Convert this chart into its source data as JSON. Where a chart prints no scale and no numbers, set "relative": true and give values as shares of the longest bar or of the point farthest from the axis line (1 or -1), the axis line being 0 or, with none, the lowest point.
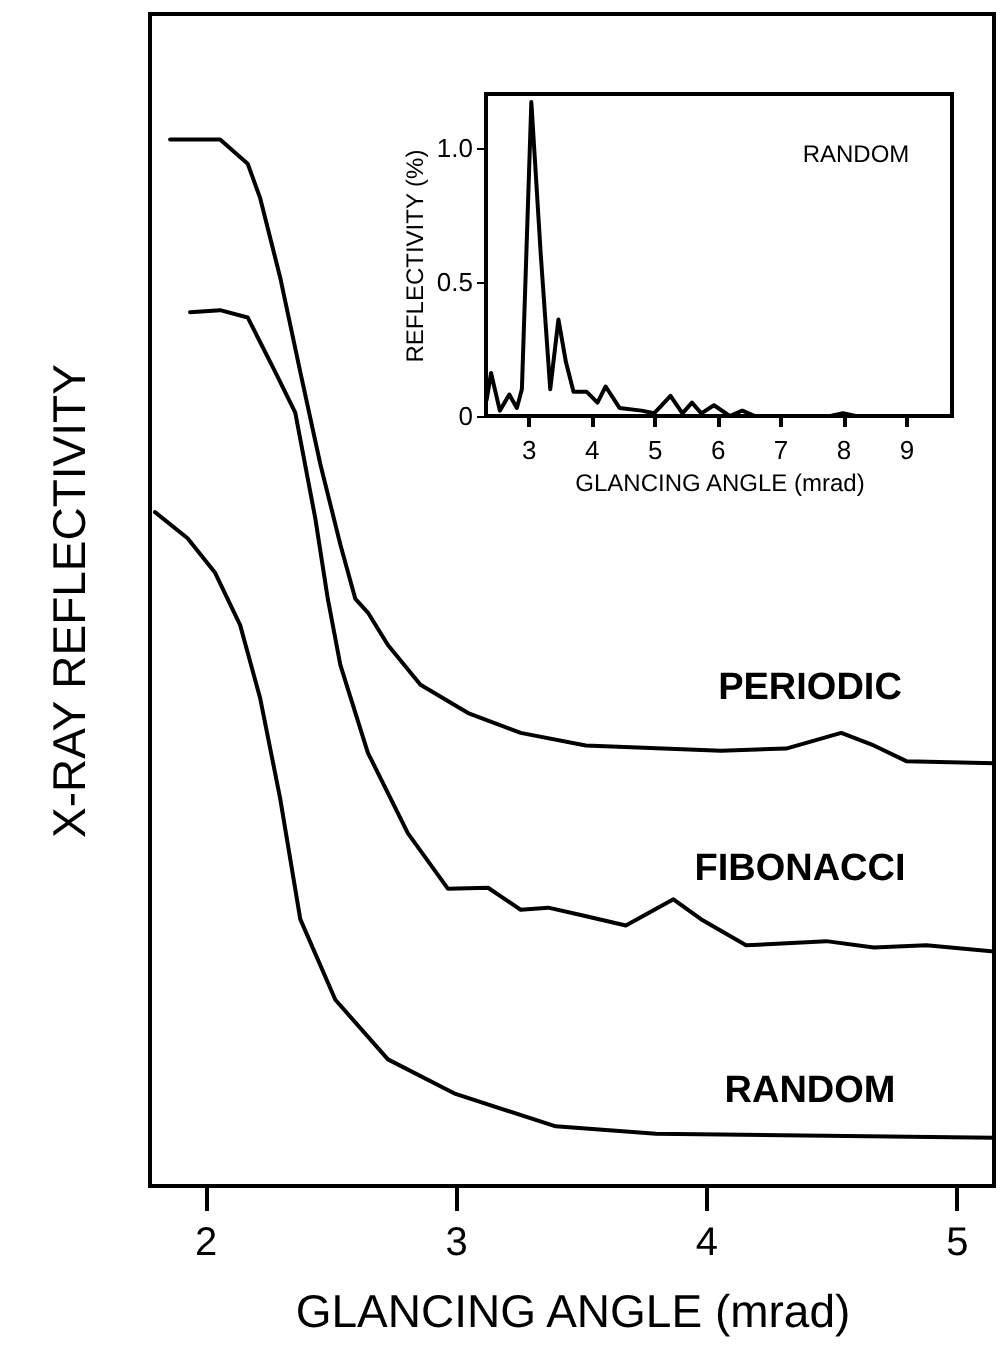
{
  "chart_data": [
    {
      "type": "line",
      "xlabel": "GLANCING ANGLE (mrad)",
      "ylabel": "X-RAY REFLECTIVITY",
      "relative": true,
      "xlim": [
        1.78,
        5.15
      ],
      "xticks": [
        2,
        3,
        4,
        5
      ],
      "grid": false,
      "marker": "none",
      "line_style": "solid",
      "series": [
        {
          "name": "PERIODIC",
          "color": "#000000",
          "x": [
            1.86,
            2.06,
            2.17,
            2.22,
            2.3,
            2.38,
            2.46,
            2.54,
            2.6,
            2.65,
            2.73,
            2.86,
            3.05,
            3.26,
            3.52,
            4.06,
            4.32,
            4.54,
            4.67,
            4.8,
            5.15
          ],
          "values": [
            1.0,
            1.0,
            0.977,
            0.944,
            0.868,
            0.778,
            0.69,
            0.613,
            0.561,
            0.548,
            0.517,
            0.479,
            0.452,
            0.433,
            0.421,
            0.416,
            0.418,
            0.433,
            0.421,
            0.406,
            0.404
          ]
        },
        {
          "name": "FIBONACCI",
          "color": "#000000",
          "x": [
            1.94,
            2.06,
            2.17,
            2.28,
            2.36,
            2.44,
            2.49,
            2.54,
            2.65,
            2.81,
            2.97,
            3.13,
            3.26,
            3.37,
            3.5,
            3.68,
            3.87,
            3.98,
            4.16,
            4.48,
            4.67,
            4.88,
            5.15
          ],
          "values": [
            0.835,
            0.837,
            0.83,
            0.778,
            0.739,
            0.638,
            0.561,
            0.498,
            0.414,
            0.337,
            0.284,
            0.285,
            0.264,
            0.266,
            0.259,
            0.249,
            0.274,
            0.255,
            0.23,
            0.234,
            0.228,
            0.23,
            0.224
          ]
        },
        {
          "name": "RANDOM",
          "color": "#000000",
          "x": [
            1.8,
            1.93,
            2.04,
            2.14,
            2.22,
            2.3,
            2.38,
            2.52,
            2.73,
            3.0,
            3.4,
            3.8,
            5.15
          ],
          "values": [
            0.644,
            0.619,
            0.586,
            0.536,
            0.466,
            0.37,
            0.255,
            0.178,
            0.121,
            0.088,
            0.057,
            0.05,
            0.046
          ]
        }
      ]
    },
    {
      "type": "line",
      "xlabel": "GLANCING ANGLE (mrad)",
      "ylabel": "REFLECTIVITY (%)",
      "xlim": [
        2.33,
        9.73
      ],
      "ylim": [
        0,
        1.2
      ],
      "xticks": [
        3,
        4,
        5,
        6,
        7,
        8,
        9
      ],
      "yticks": [
        0,
        0.5,
        {
          "value": 1,
          "label": "1.0"
        }
      ],
      "grid": false,
      "marker": "none",
      "line_style": "solid",
      "series": [
        {
          "name": "RANDOM",
          "color": "#000000",
          "x": [
            2.34,
            2.41,
            2.55,
            2.7,
            2.82,
            2.9,
            3.05,
            3.2,
            3.35,
            3.48,
            3.6,
            3.72,
            3.93,
            4.1,
            4.23,
            4.45,
            4.8,
            5.0,
            5.26,
            5.45,
            5.6,
            5.75,
            5.95,
            6.2,
            6.4,
            6.6,
            7.8,
            8.0,
            8.2,
            9.73
          ],
          "values": [
            0.06,
            0.16,
            0.02,
            0.08,
            0.03,
            0.1,
            1.17,
            0.6,
            0.1,
            0.36,
            0.2,
            0.09,
            0.09,
            0.05,
            0.11,
            0.03,
            0.02,
            0.01,
            0.075,
            0.01,
            0.05,
            0.01,
            0.04,
            0.0,
            0.02,
            0.0,
            0.0,
            0.01,
            0.0,
            0.0
          ]
        }
      ]
    }
  ]
}
